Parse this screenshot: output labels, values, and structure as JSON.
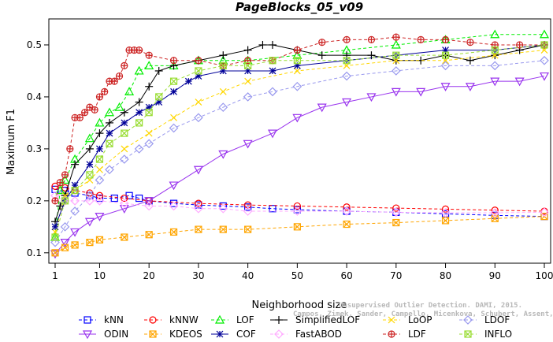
{
  "chart_data": {
    "type": "line",
    "title": "PageBlocks_05_v09",
    "xlabel": "Neighborhood size",
    "ylabel": "Maximum F1",
    "xlim": [
      1,
      100
    ],
    "ylim": [
      0.08,
      0.55
    ],
    "xticks": [
      1,
      10,
      20,
      30,
      40,
      50,
      60,
      70,
      80,
      90,
      100
    ],
    "yticks": [
      0.1,
      0.2,
      0.3,
      0.4,
      0.5
    ],
    "grid": false,
    "legend_position": "bottom",
    "watermark_lines": [
      "Unsupervised Outlier Detection. DAMI, 2015.",
      "Campos, Zimek, Sander, Campello, Micenkova, Schubert, Assent, Houle"
    ],
    "series": [
      {
        "name": "kNN",
        "color": "#0000ff",
        "dash": "4,3",
        "marker": "square",
        "x": [
          1,
          3,
          5,
          8,
          10,
          13,
          16,
          18,
          20,
          25,
          30,
          35,
          40,
          45,
          50,
          60,
          70,
          80,
          90,
          100
        ],
        "y": [
          0.222,
          0.22,
          0.215,
          0.21,
          0.205,
          0.205,
          0.21,
          0.205,
          0.2,
          0.195,
          0.192,
          0.19,
          0.188,
          0.185,
          0.183,
          0.18,
          0.178,
          0.175,
          0.172,
          0.17
        ]
      },
      {
        "name": "kNNW",
        "color": "#ff0000",
        "dash": "4,3",
        "marker": "circle",
        "x": [
          1,
          3,
          5,
          8,
          10,
          15,
          20,
          30,
          40,
          50,
          60,
          70,
          80,
          90,
          100
        ],
        "y": [
          0.228,
          0.225,
          0.22,
          0.215,
          0.21,
          0.205,
          0.2,
          0.195,
          0.192,
          0.19,
          0.188,
          0.186,
          0.184,
          0.182,
          0.18
        ]
      },
      {
        "name": "LOF",
        "color": "#00ee00",
        "dash": "4,3",
        "marker": "triangle-up",
        "x": [
          1,
          2,
          3,
          5,
          8,
          10,
          12,
          14,
          16,
          18,
          20,
          25,
          30,
          35,
          40,
          50,
          60,
          70,
          80,
          90,
          100
        ],
        "y": [
          0.13,
          0.22,
          0.24,
          0.28,
          0.32,
          0.35,
          0.37,
          0.38,
          0.41,
          0.45,
          0.46,
          0.46,
          0.47,
          0.47,
          0.47,
          0.48,
          0.49,
          0.5,
          0.51,
          0.52,
          0.52
        ]
      },
      {
        "name": "SimplifiedLOF",
        "color": "#000000",
        "dash": "0",
        "marker": "plus",
        "x": [
          1,
          2,
          3,
          5,
          8,
          10,
          12,
          15,
          18,
          20,
          22,
          25,
          30,
          35,
          40,
          43,
          45,
          50,
          55,
          60,
          65,
          70,
          75,
          80,
          85,
          90,
          95,
          100
        ],
        "y": [
          0.16,
          0.19,
          0.21,
          0.27,
          0.3,
          0.33,
          0.35,
          0.37,
          0.39,
          0.42,
          0.45,
          0.46,
          0.47,
          0.48,
          0.49,
          0.5,
          0.5,
          0.49,
          0.48,
          0.48,
          0.48,
          0.47,
          0.47,
          0.48,
          0.47,
          0.48,
          0.49,
          0.5
        ]
      },
      {
        "name": "LoOP",
        "color": "#ffd700",
        "dash": "4,3",
        "marker": "x",
        "x": [
          1,
          3,
          5,
          8,
          10,
          15,
          20,
          25,
          30,
          35,
          40,
          50,
          60,
          70,
          80,
          90,
          100
        ],
        "y": [
          0.14,
          0.21,
          0.22,
          0.24,
          0.26,
          0.3,
          0.33,
          0.36,
          0.39,
          0.41,
          0.43,
          0.45,
          0.46,
          0.47,
          0.47,
          0.48,
          0.49
        ]
      },
      {
        "name": "LDOF",
        "color": "#9999ee",
        "dash": "4,3",
        "marker": "diamond",
        "x": [
          1,
          3,
          5,
          8,
          10,
          12,
          15,
          18,
          20,
          25,
          30,
          35,
          40,
          45,
          50,
          60,
          70,
          80,
          90,
          100
        ],
        "y": [
          0.12,
          0.15,
          0.18,
          0.21,
          0.24,
          0.26,
          0.28,
          0.3,
          0.31,
          0.34,
          0.36,
          0.38,
          0.4,
          0.41,
          0.42,
          0.44,
          0.45,
          0.46,
          0.46,
          0.47
        ]
      },
      {
        "name": "ODIN",
        "color": "#9933ee",
        "dash": "0",
        "marker": "triangle-down",
        "x": [
          1,
          3,
          5,
          8,
          10,
          15,
          20,
          25,
          30,
          35,
          40,
          45,
          50,
          55,
          60,
          65,
          70,
          75,
          80,
          85,
          90,
          95,
          100
        ],
        "y": [
          0.098,
          0.12,
          0.14,
          0.16,
          0.17,
          0.185,
          0.2,
          0.23,
          0.26,
          0.29,
          0.31,
          0.33,
          0.36,
          0.38,
          0.39,
          0.4,
          0.41,
          0.41,
          0.42,
          0.42,
          0.43,
          0.43,
          0.44
        ]
      },
      {
        "name": "KDEOS",
        "color": "#ffa500",
        "dash": "4,3",
        "marker": "square-x",
        "x": [
          1,
          3,
          5,
          8,
          10,
          15,
          20,
          25,
          30,
          35,
          40,
          50,
          60,
          70,
          80,
          90,
          100
        ],
        "y": [
          0.1,
          0.11,
          0.115,
          0.12,
          0.125,
          0.13,
          0.135,
          0.14,
          0.145,
          0.145,
          0.145,
          0.15,
          0.155,
          0.158,
          0.162,
          0.166,
          0.17
        ]
      },
      {
        "name": "COF",
        "color": "#000099",
        "dash": "0",
        "marker": "asterisk",
        "x": [
          1,
          3,
          5,
          8,
          10,
          12,
          15,
          18,
          20,
          22,
          25,
          28,
          30,
          35,
          40,
          45,
          50,
          60,
          70,
          80,
          90,
          100
        ],
        "y": [
          0.15,
          0.2,
          0.23,
          0.27,
          0.3,
          0.33,
          0.35,
          0.37,
          0.38,
          0.39,
          0.41,
          0.43,
          0.44,
          0.45,
          0.45,
          0.45,
          0.46,
          0.47,
          0.48,
          0.49,
          0.49,
          0.5
        ]
      },
      {
        "name": "FastABOD",
        "color": "#ffaaff",
        "dash": "4,3",
        "marker": "diamond",
        "x": [
          1,
          3,
          5,
          8,
          10,
          15,
          20,
          25,
          30,
          35,
          40,
          50,
          60,
          70,
          80,
          90,
          100
        ],
        "y": [
          0.21,
          0.2,
          0.2,
          0.2,
          0.2,
          0.195,
          0.19,
          0.19,
          0.185,
          0.185,
          0.18,
          0.18,
          0.18,
          0.178,
          0.177,
          0.177,
          0.178
        ]
      },
      {
        "name": "LDF",
        "color": "#cc2222",
        "dash": "4,3",
        "marker": "circle-plus",
        "x": [
          1,
          2,
          3,
          4,
          5,
          6,
          7,
          8,
          9,
          10,
          11,
          12,
          13,
          14,
          15,
          16,
          17,
          18,
          20,
          25,
          30,
          35,
          40,
          45,
          50,
          55,
          60,
          65,
          70,
          75,
          80,
          85,
          90,
          95,
          100
        ],
        "y": [
          0.2,
          0.235,
          0.25,
          0.3,
          0.36,
          0.36,
          0.37,
          0.38,
          0.375,
          0.4,
          0.41,
          0.43,
          0.43,
          0.44,
          0.46,
          0.49,
          0.49,
          0.49,
          0.48,
          0.47,
          0.47,
          0.46,
          0.47,
          0.47,
          0.49,
          0.505,
          0.51,
          0.51,
          0.515,
          0.51,
          0.51,
          0.505,
          0.5,
          0.5,
          0.5
        ]
      },
      {
        "name": "INFLO",
        "color": "#99dd33",
        "dash": "4,3",
        "marker": "square-x",
        "x": [
          1,
          3,
          5,
          8,
          10,
          12,
          15,
          18,
          20,
          22,
          25,
          30,
          35,
          40,
          45,
          50,
          60,
          70,
          80,
          90,
          100
        ],
        "y": [
          0.13,
          0.2,
          0.22,
          0.25,
          0.28,
          0.31,
          0.33,
          0.35,
          0.37,
          0.4,
          0.43,
          0.45,
          0.46,
          0.46,
          0.47,
          0.47,
          0.47,
          0.48,
          0.48,
          0.49,
          0.5
        ]
      }
    ],
    "legend_order": [
      [
        "kNN",
        "kNNW",
        "LOF",
        "SimplifiedLOF",
        "LoOP",
        "LDOF"
      ],
      [
        "ODIN",
        "KDEOS",
        "COF",
        "FastABOD",
        "LDF",
        "INFLO"
      ]
    ]
  }
}
